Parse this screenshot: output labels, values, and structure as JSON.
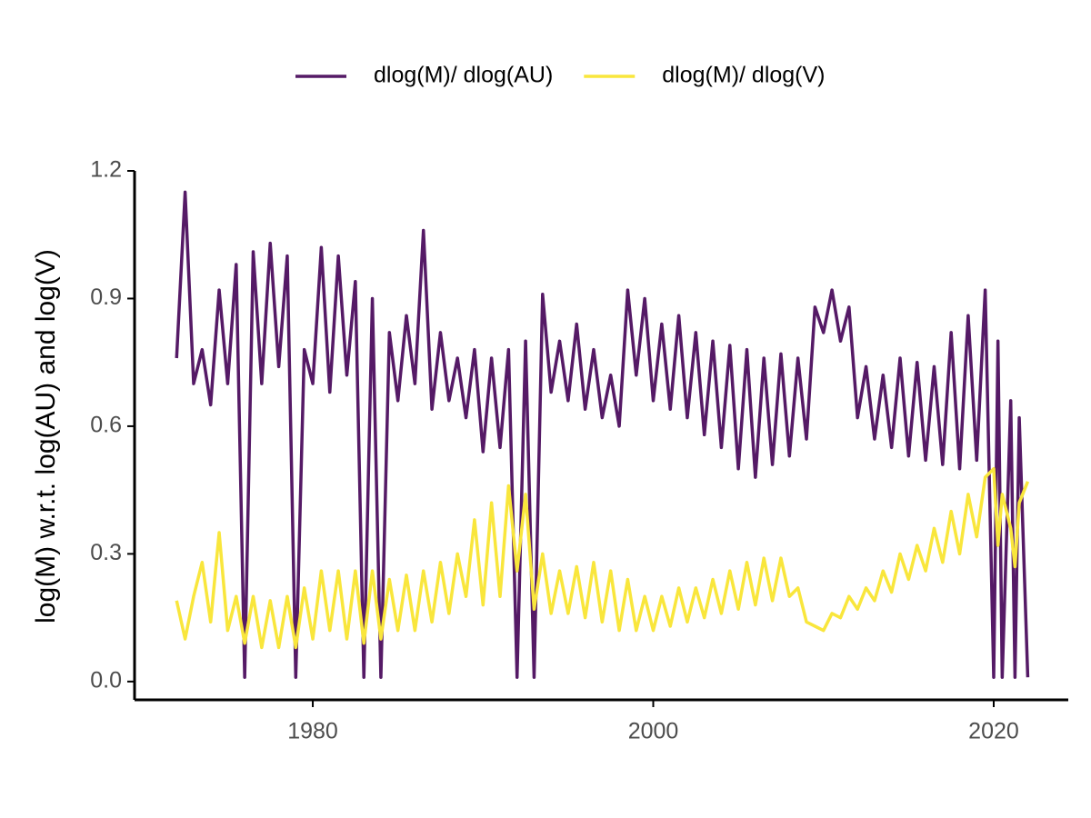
{
  "chart_data": {
    "type": "line",
    "y_label": "log(M) w.r.t. log(AU) and log(V)",
    "x": [
      1972,
      1972.5,
      1973,
      1973.5,
      1974,
      1974.5,
      1975,
      1975.5,
      1976,
      1976.5,
      1977,
      1977.5,
      1978,
      1978.5,
      1979,
      1979.5,
      1980,
      1980.5,
      1981,
      1981.5,
      1982,
      1982.5,
      1983,
      1983.5,
      1984,
      1984.5,
      1985,
      1985.5,
      1986,
      1986.5,
      1987,
      1987.5,
      1988,
      1988.5,
      1989,
      1989.5,
      1990,
      1990.5,
      1991,
      1991.5,
      1992,
      1992.5,
      1993,
      1993.5,
      1994,
      1994.5,
      1995,
      1995.5,
      1996,
      1996.5,
      1997,
      1997.5,
      1998,
      1998.5,
      1999,
      1999.5,
      2000,
      2000.5,
      2001,
      2001.5,
      2002,
      2002.5,
      2003,
      2003.5,
      2004,
      2004.5,
      2005,
      2005.5,
      2006,
      2006.5,
      2007,
      2007.5,
      2008,
      2008.5,
      2009,
      2009.5,
      2010,
      2010.5,
      2011,
      2011.5,
      2012,
      2012.5,
      2013,
      2013.5,
      2014,
      2014.5,
      2015,
      2015.5,
      2016,
      2016.5,
      2017,
      2017.5,
      2018,
      2018.5,
      2019,
      2019.5,
      2020,
      2020.25,
      2020.5,
      2021,
      2021.25,
      2021.5,
      2022
    ],
    "series": [
      {
        "name": "dlog(M)/ dlog(AU)",
        "color": "#551a66",
        "values": [
          0.76,
          1.15,
          0.7,
          0.78,
          0.65,
          0.92,
          0.7,
          0.98,
          0.01,
          1.01,
          0.7,
          1.03,
          0.74,
          1.0,
          0.01,
          0.78,
          0.7,
          1.02,
          0.68,
          1.0,
          0.72,
          0.94,
          0.01,
          0.9,
          0.01,
          0.82,
          0.66,
          0.86,
          0.7,
          1.06,
          0.64,
          0.82,
          0.66,
          0.76,
          0.62,
          0.78,
          0.54,
          0.76,
          0.55,
          0.78,
          0.01,
          0.8,
          0.01,
          0.91,
          0.68,
          0.8,
          0.66,
          0.84,
          0.64,
          0.78,
          0.62,
          0.72,
          0.6,
          0.92,
          0.72,
          0.9,
          0.66,
          0.84,
          0.64,
          0.86,
          0.62,
          0.82,
          0.58,
          0.8,
          0.55,
          0.79,
          0.5,
          0.78,
          0.48,
          0.76,
          0.51,
          0.77,
          0.53,
          0.76,
          0.57,
          0.88,
          0.82,
          0.92,
          0.8,
          0.88,
          0.62,
          0.74,
          0.57,
          0.72,
          0.55,
          0.76,
          0.53,
          0.75,
          0.52,
          0.74,
          0.51,
          0.82,
          0.5,
          0.86,
          0.52,
          0.92,
          0.01,
          0.8,
          0.01,
          0.66,
          0.01,
          0.62,
          0.01
        ]
      },
      {
        "name": "dlog(M)/ dlog(V)",
        "color": "#f9e63c",
        "values": [
          0.19,
          0.1,
          0.2,
          0.28,
          0.14,
          0.35,
          0.12,
          0.2,
          0.09,
          0.2,
          0.08,
          0.19,
          0.08,
          0.2,
          0.08,
          0.22,
          0.1,
          0.26,
          0.12,
          0.26,
          0.1,
          0.26,
          0.09,
          0.26,
          0.1,
          0.24,
          0.12,
          0.25,
          0.12,
          0.26,
          0.14,
          0.28,
          0.16,
          0.3,
          0.2,
          0.38,
          0.18,
          0.42,
          0.2,
          0.46,
          0.26,
          0.44,
          0.17,
          0.3,
          0.16,
          0.26,
          0.16,
          0.27,
          0.15,
          0.28,
          0.14,
          0.26,
          0.12,
          0.24,
          0.12,
          0.2,
          0.12,
          0.2,
          0.13,
          0.22,
          0.14,
          0.22,
          0.15,
          0.24,
          0.16,
          0.26,
          0.17,
          0.28,
          0.18,
          0.29,
          0.19,
          0.29,
          0.2,
          0.22,
          0.14,
          0.13,
          0.12,
          0.16,
          0.15,
          0.2,
          0.17,
          0.22,
          0.19,
          0.26,
          0.21,
          0.3,
          0.24,
          0.32,
          0.26,
          0.36,
          0.28,
          0.4,
          0.3,
          0.44,
          0.34,
          0.48,
          0.5,
          0.32,
          0.44,
          0.36,
          0.27,
          0.42,
          0.47
        ]
      }
    ],
    "xlim": [
      1969.53,
      2024.38
    ],
    "ylim": [
      -0.043,
      1.2
    ],
    "xticks": [
      1980,
      2000,
      2020
    ],
    "yticks": [
      {
        "value": 0,
        "label": "0.0"
      },
      0.3,
      0.6,
      0.9,
      1.2
    ],
    "legend": "top",
    "grid": false
  }
}
